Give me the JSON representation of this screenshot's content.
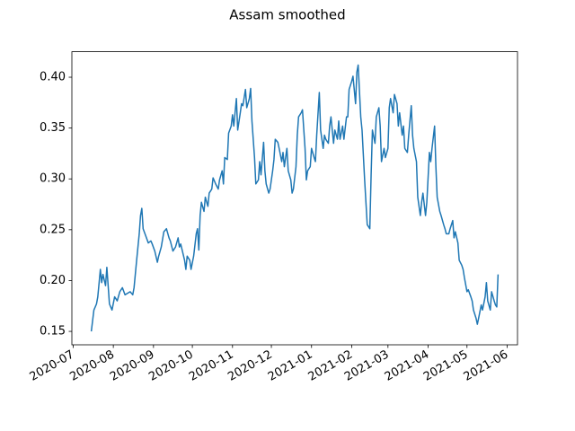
{
  "chart_data": {
    "type": "line",
    "title": "Assam smoothed",
    "color": "#1f77b4",
    "x": [
      "2020-07-15",
      "2020-07-17",
      "2020-07-19",
      "2020-07-20",
      "2020-07-22",
      "2020-07-23",
      "2020-07-24",
      "2020-07-26",
      "2020-07-27",
      "2020-07-29",
      "2020-07-31",
      "2020-08-02",
      "2020-08-04",
      "2020-08-06",
      "2020-08-08",
      "2020-08-10",
      "2020-08-14",
      "2020-08-16",
      "2020-08-17",
      "2020-08-19",
      "2020-08-21",
      "2020-08-22",
      "2020-08-23",
      "2020-08-24",
      "2020-08-26",
      "2020-08-28",
      "2020-08-30",
      "2020-08-31",
      "2020-09-02",
      "2020-09-04",
      "2020-09-05",
      "2020-09-07",
      "2020-09-09",
      "2020-09-11",
      "2020-09-13",
      "2020-09-14",
      "2020-09-16",
      "2020-09-18",
      "2020-09-20",
      "2020-09-21",
      "2020-09-22",
      "2020-09-25",
      "2020-09-26",
      "2020-09-27",
      "2020-09-29",
      "2020-09-30",
      "2020-10-02",
      "2020-10-04",
      "2020-10-05",
      "2020-10-06",
      "2020-10-07",
      "2020-10-08",
      "2020-10-10",
      "2020-10-11",
      "2020-10-13",
      "2020-10-14",
      "2020-10-16",
      "2020-10-17",
      "2020-10-19",
      "2020-10-21",
      "2020-10-22",
      "2020-10-24",
      "2020-10-25",
      "2020-10-26",
      "2020-10-28",
      "2020-10-29",
      "2020-10-31",
      "2020-11-01",
      "2020-11-02",
      "2020-11-04",
      "2020-11-05",
      "2020-11-07",
      "2020-11-08",
      "2020-11-09",
      "2020-11-11",
      "2020-11-12",
      "2020-11-14",
      "2020-11-15",
      "2020-11-16",
      "2020-11-18",
      "2020-11-19",
      "2020-11-21",
      "2020-11-22",
      "2020-11-23",
      "2020-11-25",
      "2020-11-26",
      "2020-11-27",
      "2020-11-29",
      "2020-11-30",
      "2020-12-02",
      "2020-12-03",
      "2020-12-04",
      "2020-12-06",
      "2020-12-07",
      "2020-12-09",
      "2020-12-10",
      "2020-12-11",
      "2020-12-13",
      "2020-12-14",
      "2020-12-16",
      "2020-12-17",
      "2020-12-18",
      "2020-12-20",
      "2020-12-21",
      "2020-12-22",
      "2020-12-24",
      "2020-12-25",
      "2020-12-27",
      "2020-12-28",
      "2020-12-29",
      "2020-12-31",
      "2021-01-01",
      "2021-01-03",
      "2021-01-04",
      "2021-01-05",
      "2021-01-07",
      "2021-01-08",
      "2021-01-10",
      "2021-01-11",
      "2021-01-12",
      "2021-01-14",
      "2021-01-15",
      "2021-01-16",
      "2021-01-18",
      "2021-01-19",
      "2021-01-21",
      "2021-01-22",
      "2021-01-23",
      "2021-01-25",
      "2021-01-26",
      "2021-01-28",
      "2021-01-29",
      "2021-01-30",
      "2021-02-01",
      "2021-02-02",
      "2021-02-04",
      "2021-02-05",
      "2021-02-06",
      "2021-02-08",
      "2021-02-09",
      "2021-02-11",
      "2021-02-12",
      "2021-02-13",
      "2021-02-15",
      "2021-02-16",
      "2021-02-17",
      "2021-02-19",
      "2021-02-20",
      "2021-02-22",
      "2021-02-23",
      "2021-02-24",
      "2021-02-26",
      "2021-02-27",
      "2021-03-01",
      "2021-03-02",
      "2021-03-03",
      "2021-03-05",
      "2021-03-06",
      "2021-03-08",
      "2021-03-09",
      "2021-03-10",
      "2021-03-12",
      "2021-03-13",
      "2021-03-14",
      "2021-03-16",
      "2021-03-17",
      "2021-03-19",
      "2021-03-20",
      "2021-03-21",
      "2021-03-23",
      "2021-03-24",
      "2021-03-26",
      "2021-03-27",
      "2021-03-28",
      "2021-03-30",
      "2021-03-31",
      "2021-04-02",
      "2021-04-03",
      "2021-04-04",
      "2021-04-06",
      "2021-04-07",
      "2021-04-08",
      "2021-04-10",
      "2021-04-11",
      "2021-04-13",
      "2021-04-14",
      "2021-04-15",
      "2021-04-17",
      "2021-04-18",
      "2021-04-20",
      "2021-04-21",
      "2021-04-22",
      "2021-04-24",
      "2021-04-25",
      "2021-04-27",
      "2021-04-28",
      "2021-04-29",
      "2021-05-01",
      "2021-05-02",
      "2021-05-04",
      "2021-05-05",
      "2021-05-06",
      "2021-05-08",
      "2021-05-09",
      "2021-05-10",
      "2021-05-12",
      "2021-05-13",
      "2021-05-15",
      "2021-05-16",
      "2021-05-17",
      "2021-05-19",
      "2021-05-20",
      "2021-05-22",
      "2021-05-23",
      "2021-05-24",
      "2021-05-25"
    ],
    "values": [
      0.15,
      0.171,
      0.177,
      0.184,
      0.211,
      0.198,
      0.206,
      0.195,
      0.213,
      0.177,
      0.171,
      0.184,
      0.18,
      0.189,
      0.193,
      0.186,
      0.189,
      0.186,
      0.193,
      0.22,
      0.246,
      0.264,
      0.271,
      0.251,
      0.244,
      0.237,
      0.239,
      0.236,
      0.229,
      0.218,
      0.224,
      0.233,
      0.248,
      0.251,
      0.242,
      0.239,
      0.229,
      0.233,
      0.242,
      0.233,
      0.236,
      0.22,
      0.211,
      0.224,
      0.22,
      0.211,
      0.224,
      0.246,
      0.251,
      0.23,
      0.264,
      0.277,
      0.268,
      0.282,
      0.273,
      0.286,
      0.29,
      0.301,
      0.295,
      0.29,
      0.299,
      0.308,
      0.295,
      0.321,
      0.319,
      0.345,
      0.352,
      0.363,
      0.352,
      0.379,
      0.348,
      0.365,
      0.374,
      0.372,
      0.388,
      0.37,
      0.379,
      0.389,
      0.357,
      0.321,
      0.295,
      0.299,
      0.317,
      0.304,
      0.336,
      0.308,
      0.295,
      0.286,
      0.29,
      0.308,
      0.319,
      0.339,
      0.336,
      0.33,
      0.317,
      0.326,
      0.312,
      0.33,
      0.308,
      0.299,
      0.286,
      0.29,
      0.312,
      0.343,
      0.361,
      0.365,
      0.368,
      0.33,
      0.299,
      0.308,
      0.312,
      0.33,
      0.321,
      0.317,
      0.343,
      0.385,
      0.348,
      0.33,
      0.343,
      0.339,
      0.335,
      0.352,
      0.361,
      0.335,
      0.348,
      0.339,
      0.357,
      0.339,
      0.352,
      0.339,
      0.361,
      0.361,
      0.388,
      0.396,
      0.401,
      0.374,
      0.405,
      0.412,
      0.361,
      0.348,
      0.299,
      0.277,
      0.255,
      0.251,
      0.304,
      0.348,
      0.335,
      0.361,
      0.37,
      0.352,
      0.317,
      0.33,
      0.321,
      0.33,
      0.37,
      0.379,
      0.365,
      0.383,
      0.374,
      0.352,
      0.365,
      0.343,
      0.352,
      0.33,
      0.326,
      0.343,
      0.372,
      0.343,
      0.33,
      0.317,
      0.282,
      0.264,
      0.277,
      0.286,
      0.264,
      0.277,
      0.326,
      0.317,
      0.33,
      0.352,
      0.312,
      0.282,
      0.268,
      0.264,
      0.255,
      0.251,
      0.246,
      0.246,
      0.251,
      0.259,
      0.242,
      0.248,
      0.237,
      0.22,
      0.215,
      0.211,
      0.203,
      0.189,
      0.191,
      0.184,
      0.18,
      0.171,
      0.163,
      0.157,
      0.163,
      0.176,
      0.171,
      0.184,
      0.198,
      0.18,
      0.171,
      0.189,
      0.18,
      0.176,
      0.174,
      0.206
    ],
    "xlim": [
      "2020-06-30",
      "2021-06-09"
    ],
    "xticks": [
      {
        "value": "2020-07-01",
        "label": "2020-07"
      },
      {
        "value": "2020-08-01",
        "label": "2020-08"
      },
      {
        "value": "2020-09-01",
        "label": "2020-09"
      },
      {
        "value": "2020-10-01",
        "label": "2020-10"
      },
      {
        "value": "2020-11-01",
        "label": "2020-11"
      },
      {
        "value": "2020-12-01",
        "label": "2020-12"
      },
      {
        "value": "2021-01-01",
        "label": "2021-01"
      },
      {
        "value": "2021-02-01",
        "label": "2021-02"
      },
      {
        "value": "2021-03-01",
        "label": "2021-03"
      },
      {
        "value": "2021-04-01",
        "label": "2021-04"
      },
      {
        "value": "2021-05-01",
        "label": "2021-05"
      },
      {
        "value": "2021-06-01",
        "label": "2021-06"
      }
    ],
    "ylim": [
      0.1368,
      0.4251
    ],
    "yticks": [
      0.15,
      {
        "value": 0.2,
        "label": "0.20"
      },
      0.25,
      {
        "value": 0.3,
        "label": "0.30"
      },
      0.35,
      {
        "value": 0.4,
        "label": "0.40"
      }
    ],
    "grid": false
  }
}
